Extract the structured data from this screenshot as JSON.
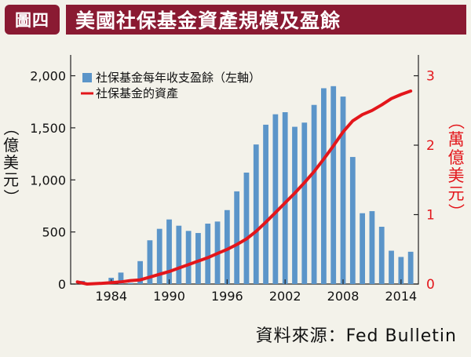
{
  "header": {
    "tag": "圖四",
    "title": "美國社保基金資產規模及盈餘"
  },
  "source": "資料來源：Fed Bulletin",
  "chart_data": {
    "type": "bar",
    "x": [
      1981,
      1982,
      1983,
      1984,
      1985,
      1986,
      1987,
      1988,
      1989,
      1990,
      1991,
      1992,
      1993,
      1994,
      1995,
      1996,
      1997,
      1998,
      1999,
      2000,
      2001,
      2002,
      2003,
      2004,
      2005,
      2006,
      2007,
      2008,
      2009,
      2010,
      2011,
      2012,
      2013,
      2014,
      2015
    ],
    "x_ticks": [
      1984,
      1990,
      1996,
      2002,
      2008,
      2014
    ],
    "xlim": [
      1979.8,
      2015.8
    ],
    "series": [
      {
        "name": "社保基金每年收支盈餘（左軸）",
        "kind": "bar",
        "axis": "left",
        "color": "#5b95c9",
        "values": [
          30,
          10,
          20,
          60,
          110,
          10,
          220,
          420,
          530,
          620,
          560,
          510,
          490,
          580,
          600,
          710,
          890,
          1070,
          1340,
          1530,
          1630,
          1650,
          1510,
          1550,
          1720,
          1880,
          1900,
          1800,
          1220,
          680,
          700,
          550,
          320,
          260,
          310
        ]
      },
      {
        "name": "社保基金的資產",
        "kind": "line",
        "axis": "right",
        "color": "#e3161b",
        "x": [
          1980.5,
          1981.5,
          1983,
          1984,
          1985,
          1986,
          1987,
          1988,
          1989,
          1990,
          1991,
          1992,
          1993,
          1994,
          1995,
          1996,
          1997,
          1998,
          1999,
          2000,
          2001,
          2002,
          2003,
          2004,
          2005,
          2006,
          2007,
          2008,
          2009,
          2010,
          2011,
          2012,
          2013,
          2014,
          2015
        ],
        "values": [
          0.03,
          0.0,
          0.01,
          0.02,
          0.03,
          0.05,
          0.06,
          0.1,
          0.14,
          0.18,
          0.23,
          0.28,
          0.33,
          0.38,
          0.44,
          0.5,
          0.57,
          0.65,
          0.76,
          0.89,
          1.03,
          1.17,
          1.31,
          1.46,
          1.62,
          1.8,
          1.99,
          2.19,
          2.35,
          2.44,
          2.5,
          2.58,
          2.67,
          2.73,
          2.78
        ]
      }
    ],
    "left_axis": {
      "label": "（億美元）",
      "ticks": [
        "0",
        "500",
        "1,000",
        "1,500",
        "2,000"
      ],
      "tick_values": [
        0,
        500,
        1000,
        1500,
        2000
      ],
      "ylim": [
        0,
        2200
      ]
    },
    "right_axis": {
      "label": "（萬億美元）",
      "ticks": [
        "0",
        "1",
        "2",
        "3"
      ],
      "tick_values": [
        0,
        1,
        2,
        3
      ],
      "ylim": [
        0,
        3.3
      ],
      "color": "#e3161b"
    },
    "legend_placement": "top-left"
  }
}
